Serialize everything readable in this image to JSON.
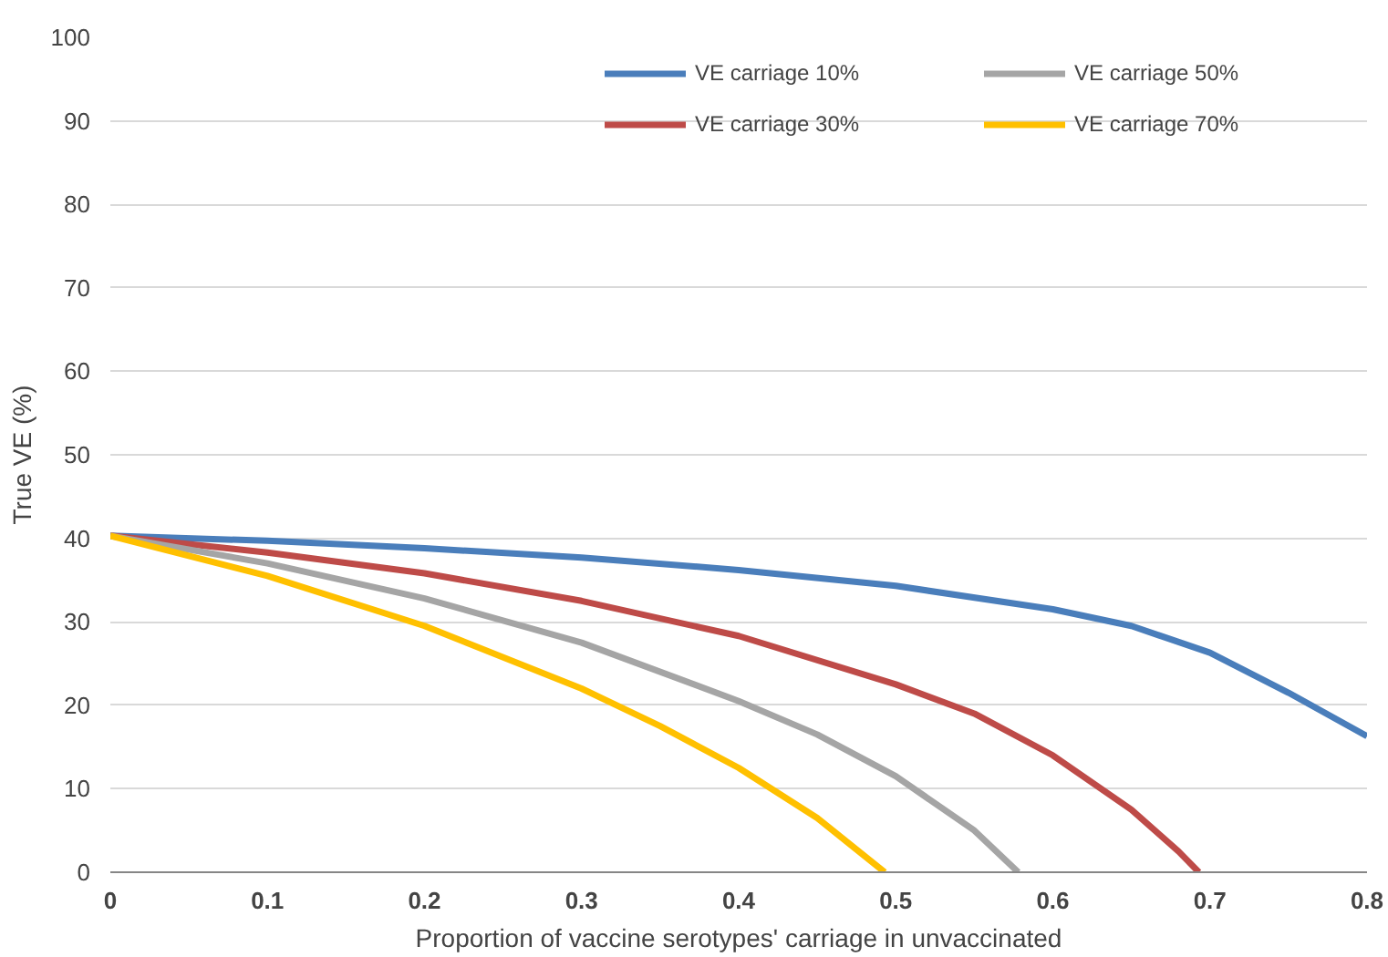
{
  "chart_data": {
    "type": "line",
    "xlabel": "Proportion of vaccine serotypes' carriage in unvaccinated",
    "ylabel": "True VE (%)",
    "xlim": [
      0,
      0.8
    ],
    "ylim": [
      0,
      100
    ],
    "xticks": [
      0,
      0.1,
      0.2,
      0.3,
      0.4,
      0.5,
      0.6,
      0.7,
      0.8
    ],
    "yticks": [
      0,
      10,
      20,
      30,
      40,
      50,
      60,
      70,
      80,
      90,
      100
    ],
    "grid": "y",
    "legend": "top right",
    "series": [
      {
        "name": "VE carriage 10%",
        "color": "#4a7ebb",
        "x": [
          0,
          0.1,
          0.2,
          0.3,
          0.4,
          0.5,
          0.6,
          0.65,
          0.7,
          0.75,
          0.8
        ],
        "values": [
          40.3,
          39.7,
          38.8,
          37.7,
          36.2,
          34.3,
          31.5,
          29.5,
          26.3,
          21.5,
          16.3
        ]
      },
      {
        "name": "VE carriage 30%",
        "color": "#be4b48",
        "x": [
          0,
          0.1,
          0.2,
          0.3,
          0.4,
          0.5,
          0.55,
          0.6,
          0.65,
          0.68,
          0.693
        ],
        "values": [
          40.3,
          38.3,
          35.8,
          32.5,
          28.3,
          22.5,
          19,
          14,
          7.5,
          2.5,
          0
        ]
      },
      {
        "name": "VE carriage 50%",
        "color": "#a5a5a5",
        "x": [
          0,
          0.1,
          0.2,
          0.3,
          0.4,
          0.45,
          0.5,
          0.55,
          0.578
        ],
        "values": [
          40.3,
          37,
          32.8,
          27.5,
          20.5,
          16.5,
          11.5,
          5,
          0
        ]
      },
      {
        "name": "VE carriage 70%",
        "color": "#ffc000",
        "x": [
          0,
          0.1,
          0.2,
          0.3,
          0.35,
          0.4,
          0.45,
          0.493
        ],
        "values": [
          40.3,
          35.5,
          29.5,
          22,
          17.5,
          12.5,
          6.5,
          0
        ]
      }
    ]
  }
}
